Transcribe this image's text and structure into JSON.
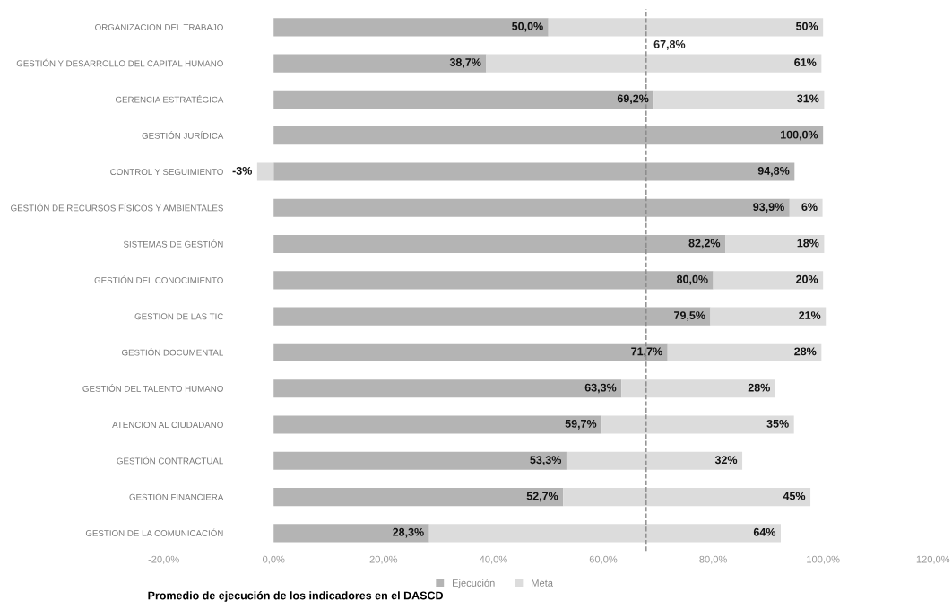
{
  "chart_data": {
    "type": "bar",
    "orientation": "horizontal",
    "stacked": true,
    "categories": [
      "ORGANIZACION DEL TRABAJO",
      "GESTIÓN Y DESARROLLO DEL CAPITAL HUMANO",
      "GERENCIA ESTRATÉGICA",
      "GESTIÓN JURÍDICA",
      "CONTROL Y SEGUIMIENTO",
      "GESTIÓN DE RECURSOS FÍSICOS Y AMBIENTALES",
      "SISTEMAS DE GESTIÓN",
      "GESTIÓN DEL CONOCIMIENTO",
      "GESTION DE LAS TIC",
      "GESTIÓN DOCUMENTAL",
      "GESTIÓN DEL TALENTO HUMANO",
      "ATENCION AL CIUDADANO",
      "GESTIÓN CONTRACTUAL",
      "GESTION FINANCIERA",
      "GESTION DE LA COMUNICACIÓN"
    ],
    "series": [
      {
        "name": "Ejecución",
        "color": "#b4b4b4",
        "values": [
          50.0,
          38.7,
          69.2,
          100.0,
          94.8,
          93.9,
          82.2,
          80.0,
          79.5,
          71.7,
          63.3,
          59.7,
          53.3,
          52.7,
          28.3
        ],
        "value_labels": [
          "50,0%",
          "38,7%",
          "69,2%",
          "100,0%",
          "94,8%",
          "93,9%",
          "82,2%",
          "80,0%",
          "79,5%",
          "71,7%",
          "63,3%",
          "59,7%",
          "53,3%",
          "52,7%",
          "28,3%"
        ]
      },
      {
        "name": "Meta",
        "color": "#dcdcdc",
        "values": [
          50,
          61,
          31,
          0,
          -3,
          6,
          18,
          20,
          21,
          28,
          28,
          35,
          32,
          45,
          64
        ],
        "value_labels": [
          "50%",
          "61%",
          "31%",
          null,
          "-3%",
          "6%",
          "18%",
          "20%",
          "21%",
          "28%",
          "28%",
          "35%",
          "32%",
          "45%",
          "64%"
        ]
      }
    ],
    "xlim": [
      -20,
      120
    ],
    "xticks": [
      {
        "value": -20,
        "label": "-20,0%"
      },
      {
        "value": 0,
        "label": "0,0%"
      },
      {
        "value": 20,
        "label": "20,0%"
      },
      {
        "value": 40,
        "label": "40,0%"
      },
      {
        "value": 60,
        "label": "60,0%"
      },
      {
        "value": 80,
        "label": "80,0%"
      },
      {
        "value": 100,
        "label": "100,0%"
      },
      {
        "value": 120,
        "label": "120,0%"
      }
    ],
    "ref_lines": [
      {
        "axis": "x",
        "value": 67.8,
        "label": "67,8%",
        "color": "#888888",
        "line_style": "dashed"
      }
    ],
    "annotations": [
      "Promedio de ejecución de los indicadores en el DASCD"
    ],
    "legend": "bottom",
    "grid": false
  }
}
